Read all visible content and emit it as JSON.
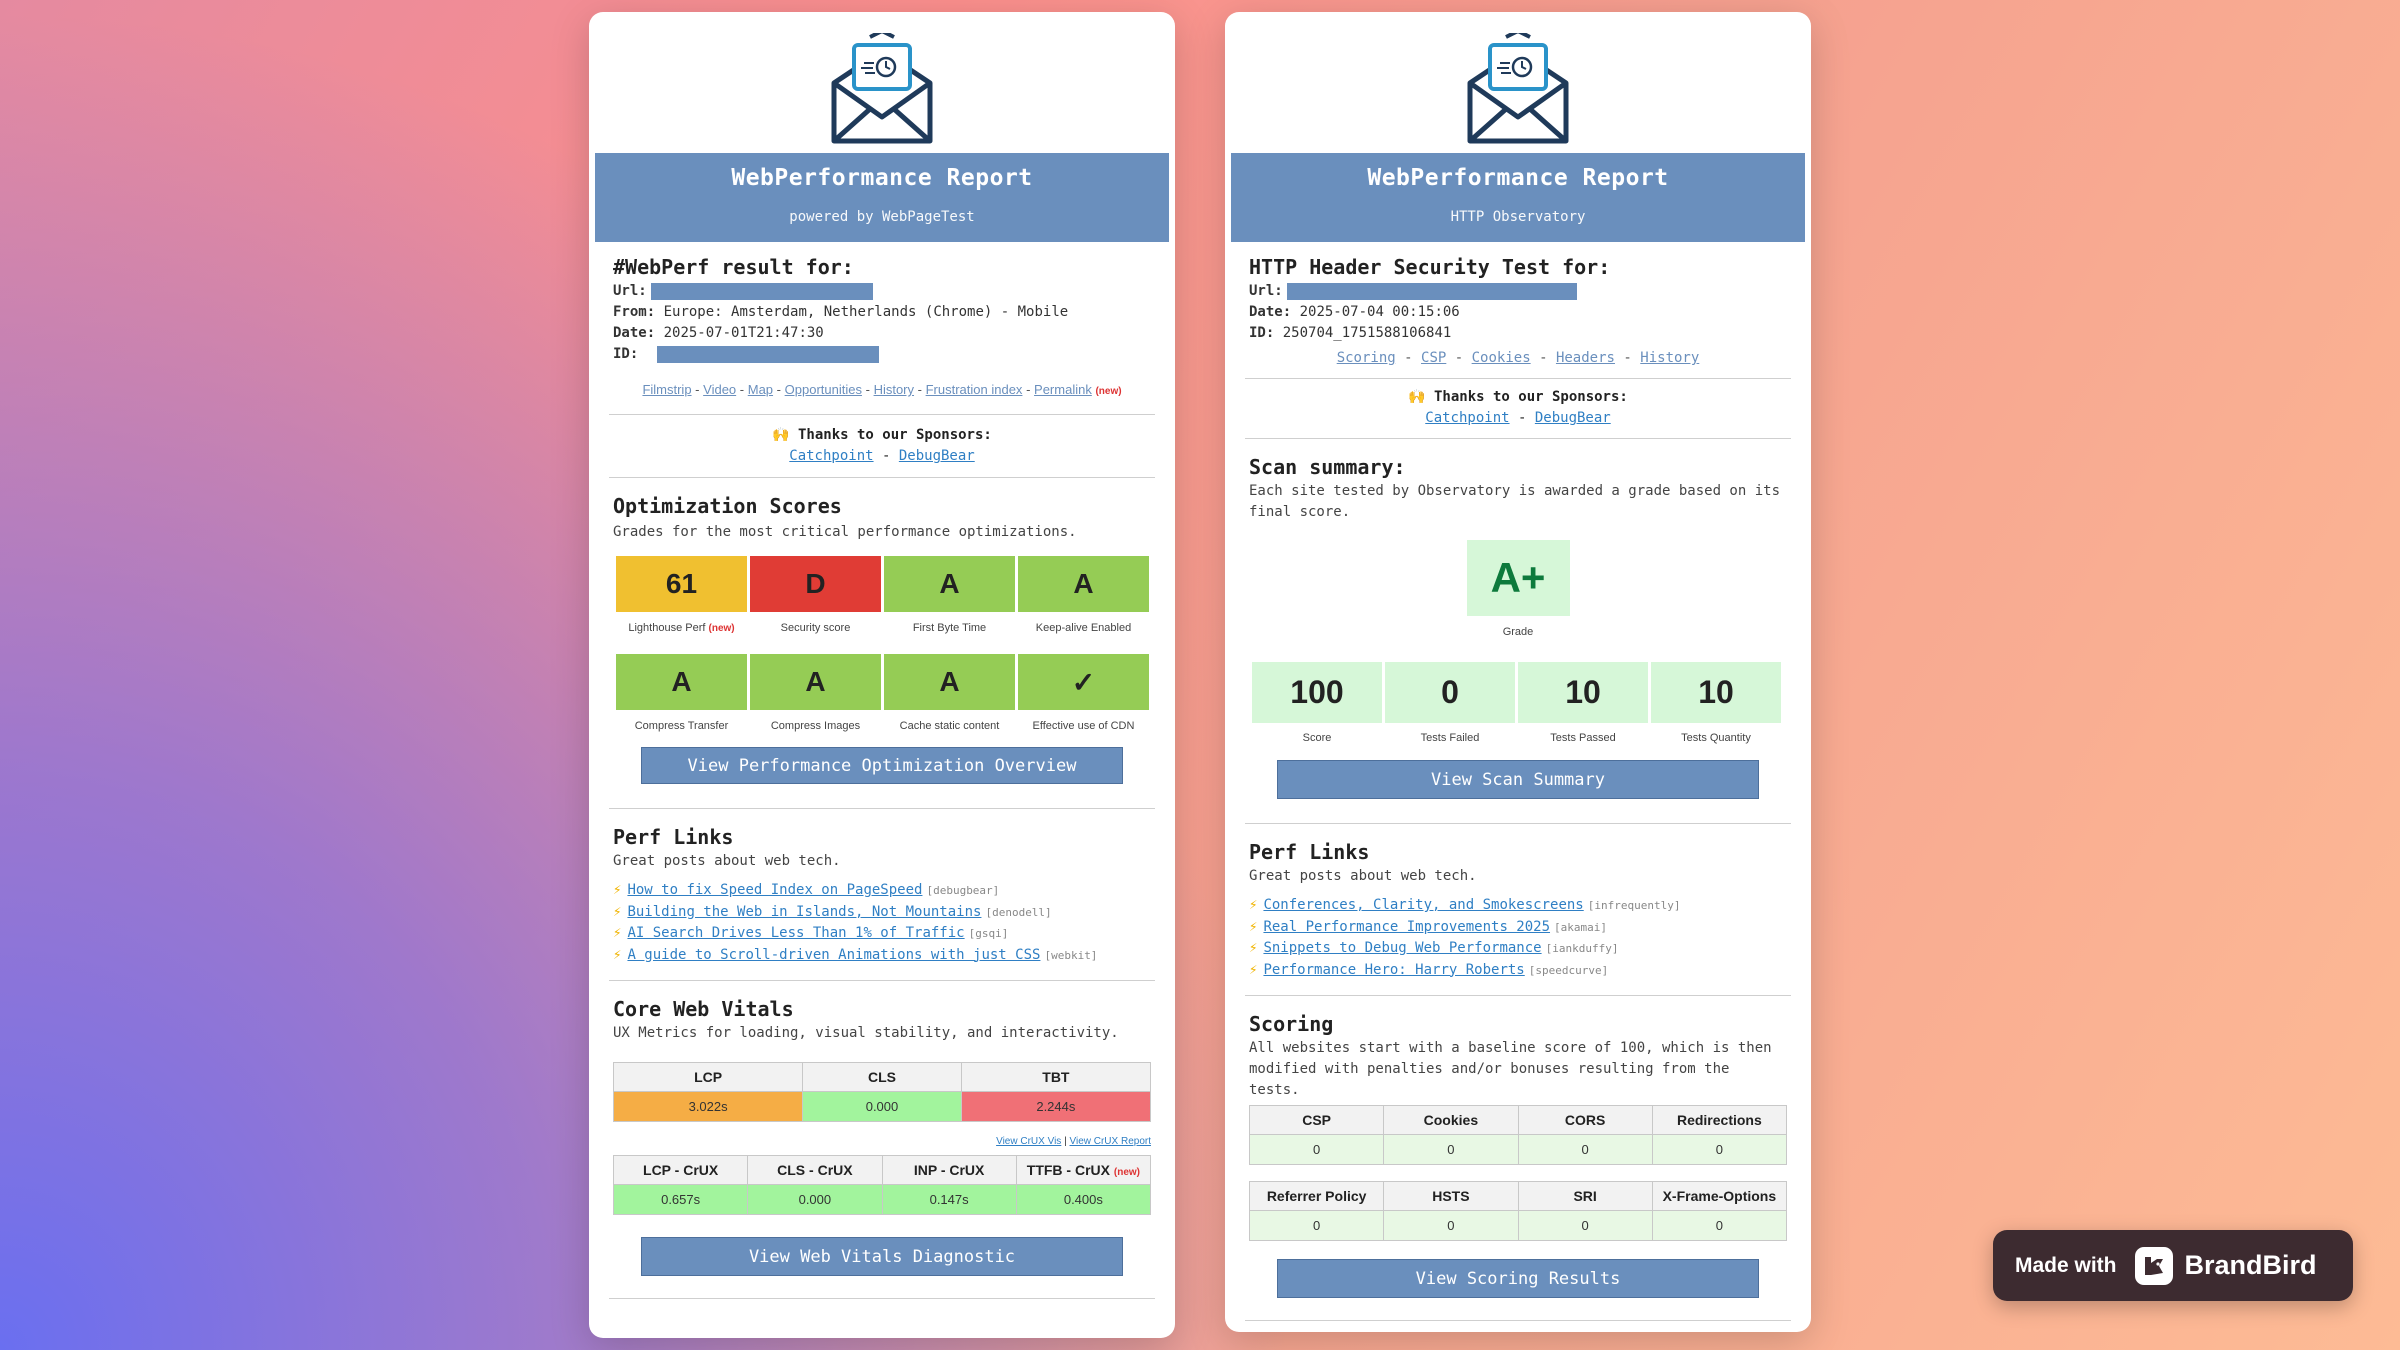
{
  "colors": {
    "banner": "#6a8fbd",
    "link": "#2f7fc4",
    "grade_yellow": "#f0c030",
    "grade_red": "#e03c35",
    "grade_green": "#95cc55",
    "tile_green": "#d6f7d8"
  },
  "left": {
    "logo_icon": "envelope-clock-icon",
    "banner_title": "WebPerformance Report",
    "banner_subtitle": "powered by WebPageTest",
    "result_heading": "#WebPerf result for:",
    "url_label": "Url:",
    "from_label": "From:",
    "from_value": "Europe: Amsterdam, Netherlands (Chrome) - Mobile",
    "date_label": "Date:",
    "date_value": "2025-07-01T21:47:30",
    "id_label": "ID:",
    "nav": [
      "Filmstrip",
      "Video",
      "Map",
      "Opportunities",
      "History",
      "Frustration index",
      "Permalink"
    ],
    "nav_sep": "-",
    "new_tag": "(new)",
    "sponsors_label": "🙌 Thanks to our Sponsors:",
    "sponsors": [
      "Catchpoint",
      "DebugBear"
    ],
    "opt_title": "Optimization Scores",
    "opt_sub": "Grades for the most critical performance optimizations.",
    "grades_row1": [
      {
        "value": "61",
        "label": "Lighthouse Perf"
      },
      {
        "value": "D",
        "label": "Security score"
      },
      {
        "value": "A",
        "label": "First Byte Time"
      },
      {
        "value": "A",
        "label": "Keep-alive Enabled"
      }
    ],
    "grades_row2": [
      {
        "value": "A",
        "label": "Compress Transfer"
      },
      {
        "value": "A",
        "label": "Compress Images"
      },
      {
        "value": "A",
        "label": "Cache static content"
      },
      {
        "value": "✓",
        "label": "Effective use of CDN"
      }
    ],
    "opt_button": "View Performance Optimization Overview",
    "perf_title": "Perf Links",
    "perf_sub": "Great posts about web tech.",
    "perf_links": [
      {
        "text": "How to fix Speed Index on PageSpeed",
        "src": "[debugbear]"
      },
      {
        "text": "Building the Web in Islands, Not Mountains",
        "src": "[denodell]"
      },
      {
        "text": "AI Search Drives Less Than 1% of Traffic",
        "src": "[gsqi]"
      },
      {
        "text": "A guide to Scroll-driven Animations with just CSS",
        "src": "[webkit]"
      }
    ],
    "cwv_title": "Core Web Vitals",
    "cwv_sub": "UX Metrics for loading, visual stability, and interactivity.",
    "cwv_headers": [
      "LCP",
      "CLS",
      "TBT"
    ],
    "cwv_values": [
      "3.022s",
      "0.000",
      "2.244s"
    ],
    "crux_link1": "View CrUX Vis",
    "crux_sep": "|",
    "crux_link2": "View CrUX Report",
    "crux_headers": [
      "LCP - CrUX",
      "CLS - CrUX",
      "INP - CrUX",
      "TTFB - CrUX"
    ],
    "crux_values": [
      "0.657s",
      "0.000",
      "0.147s",
      "0.400s"
    ],
    "cwv_button": "View Web Vitals Diagnostic"
  },
  "right": {
    "logo_icon": "envelope-clock-icon",
    "banner_title": "WebPerformance Report",
    "banner_subtitle": "HTTP Observatory",
    "result_heading": "HTTP Header Security Test for:",
    "url_label": "Url:",
    "date_label": "Date:",
    "date_value": "2025-07-04 00:15:06",
    "id_label": "ID:",
    "id_value": "250704_1751588106841",
    "nav": [
      "Scoring",
      "CSP",
      "Cookies",
      "Headers",
      "History"
    ],
    "nav_sep": "-",
    "sponsors_label": "🙌 Thanks to our Sponsors:",
    "sponsors": [
      "Catchpoint",
      "DebugBear"
    ],
    "scan_title": "Scan summary:",
    "scan_sub": "Each site tested by Observatory is awarded a grade based on its final score.",
    "grade_value": "A+",
    "grade_label": "Grade",
    "stats": [
      {
        "value": "100",
        "label": "Score"
      },
      {
        "value": "0",
        "label": "Tests Failed"
      },
      {
        "value": "10",
        "label": "Tests Passed"
      },
      {
        "value": "10",
        "label": "Tests Quantity"
      }
    ],
    "scan_button": "View Scan Summary",
    "perf_title": "Perf Links",
    "perf_sub": "Great posts about web tech.",
    "perf_links": [
      {
        "text": "Conferences, Clarity, and Smokescreens",
        "src": "[infrequently]"
      },
      {
        "text": "Real Performance Improvements 2025",
        "src": "[akamai]"
      },
      {
        "text": "Snippets to Debug Web Performance",
        "src": "[iankduffy]"
      },
      {
        "text": "Performance Hero: Harry Roberts",
        "src": "[speedcurve]"
      }
    ],
    "scoring_title": "Scoring",
    "scoring_sub": "All websites start with a baseline score of 100, which is then modified with penalties and/or bonuses resulting from the tests.",
    "table1_headers": [
      "CSP",
      "Cookies",
      "CORS",
      "Redirections"
    ],
    "table1_values": [
      "0",
      "0",
      "0",
      "0"
    ],
    "table2_headers": [
      "Referrer Policy",
      "HSTS",
      "SRI",
      "X-Frame-Options"
    ],
    "table2_values": [
      "0",
      "0",
      "0",
      "0"
    ],
    "scoring_button": "View Scoring Results"
  },
  "badge": {
    "made_with": "Made with",
    "brand": "BrandBird",
    "icon": "brandbird-logo-icon"
  }
}
